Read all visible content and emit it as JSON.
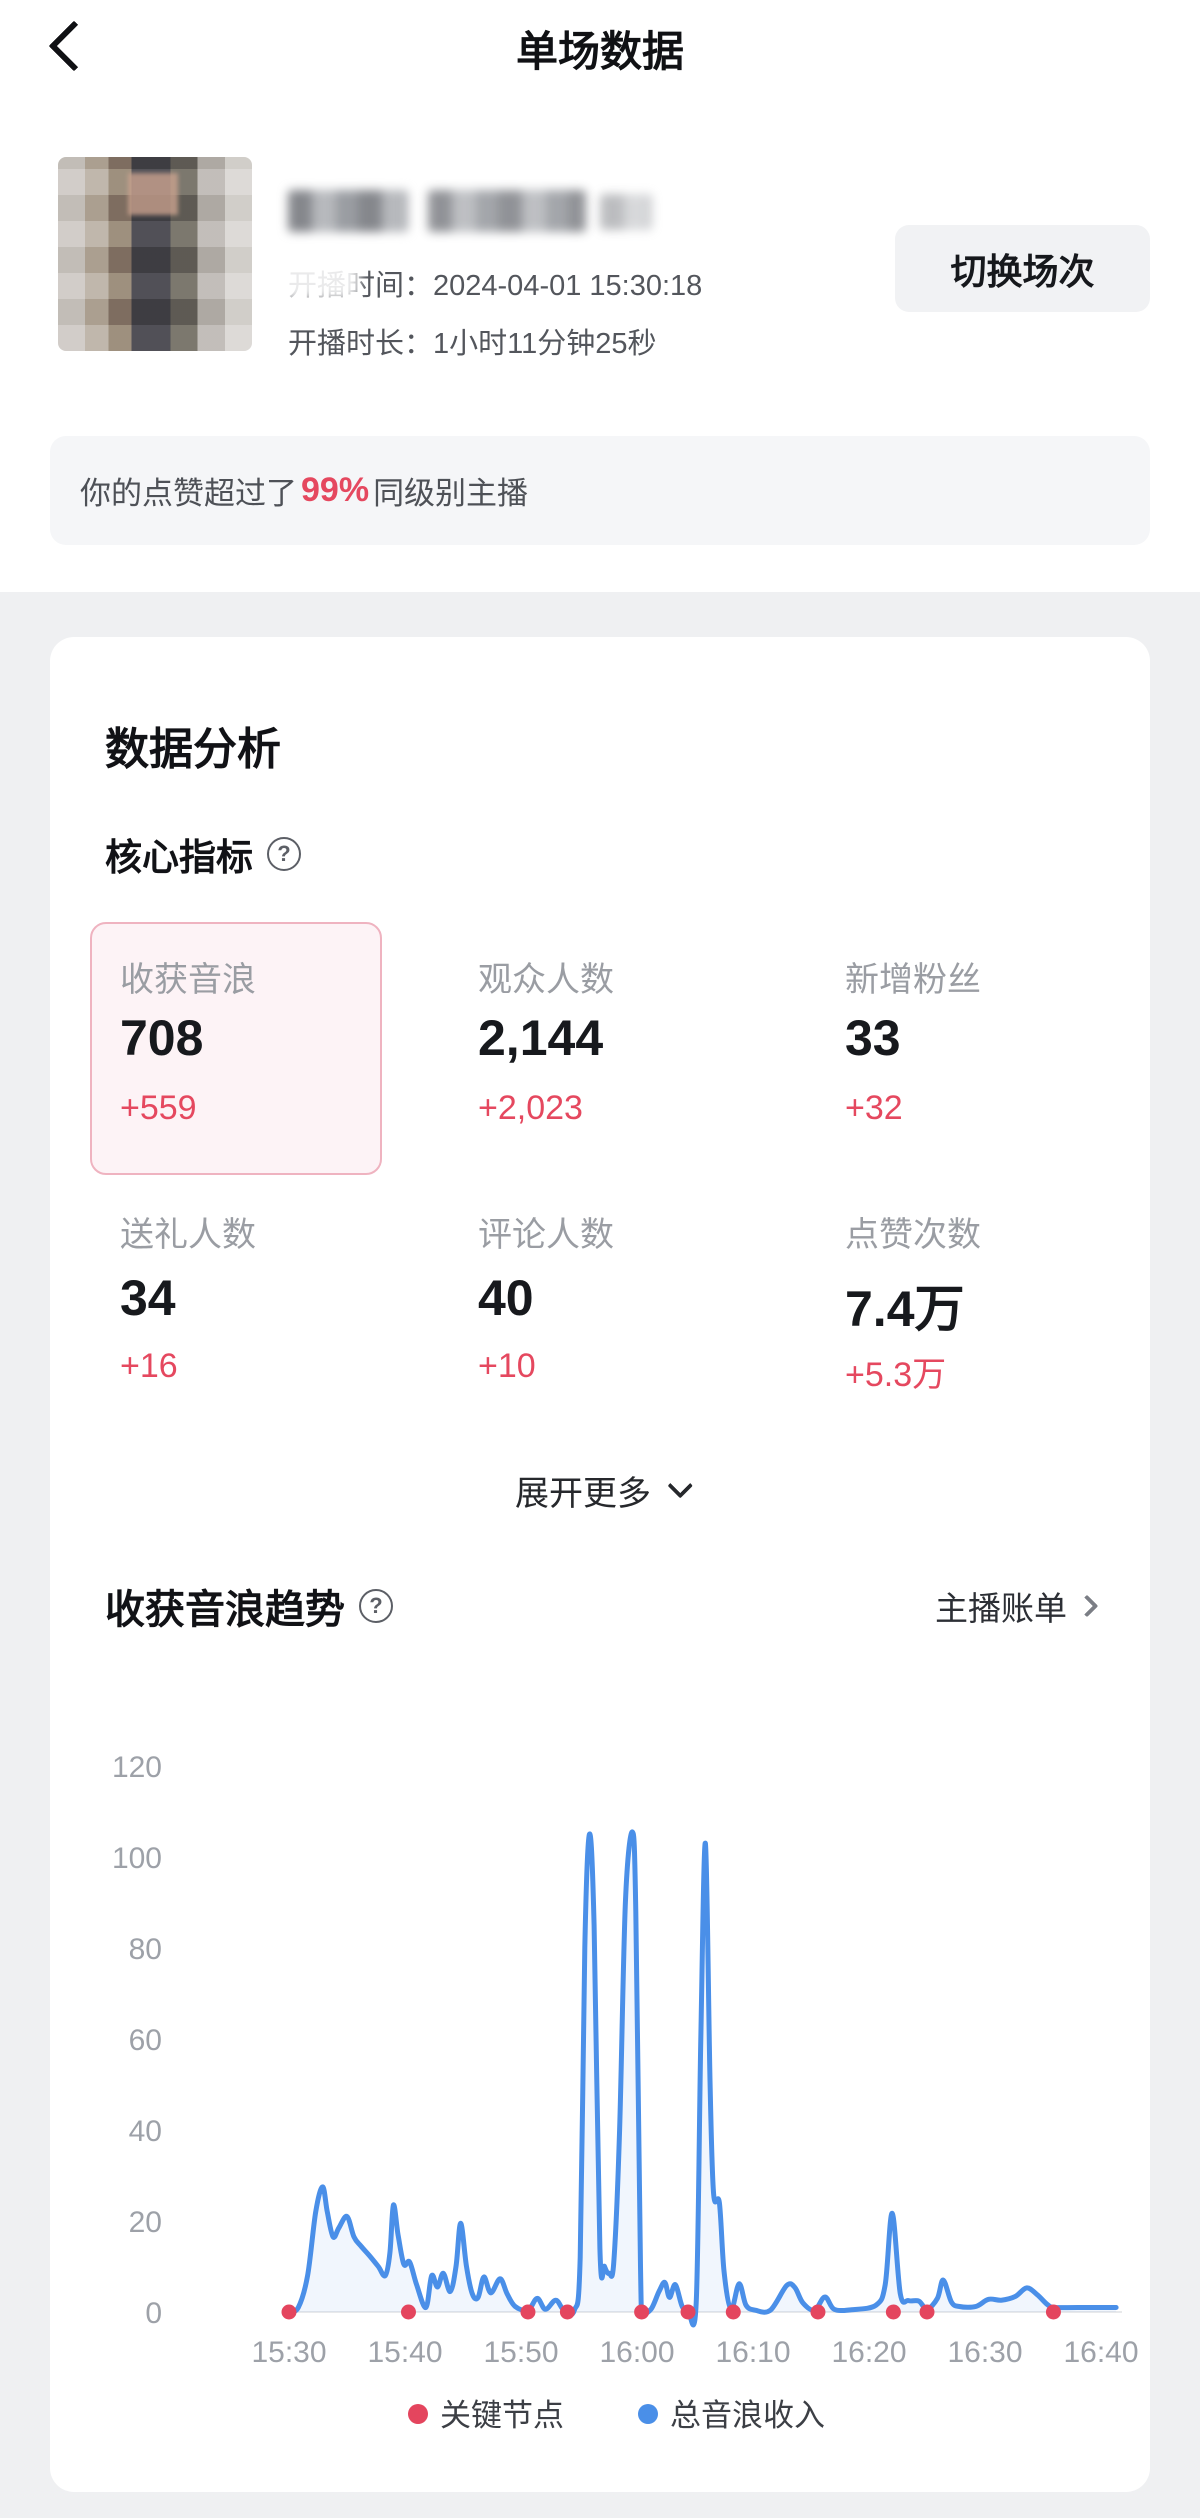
{
  "header": {
    "title": "单场数据"
  },
  "profile": {
    "broadcast_time_label": "开播时间：",
    "broadcast_time": "2024-04-01 15:30:18",
    "duration_label": "开播时长：",
    "duration": "1小时11分钟25秒",
    "switch_button": "切换场次"
  },
  "banner": {
    "prefix": "你的点赞超过了",
    "highlight": "99%",
    "suffix": "同级别主播"
  },
  "analysis": {
    "title": "数据分析",
    "core_metrics_title": "核心指标",
    "help_icon_glyph": "?",
    "metrics": [
      {
        "label": "收获音浪",
        "value": "708",
        "delta": "+559",
        "selected": true
      },
      {
        "label": "观众人数",
        "value": "2,144",
        "delta": "+2,023",
        "selected": false
      },
      {
        "label": "新增粉丝",
        "value": "33",
        "delta": "+32",
        "selected": false
      },
      {
        "label": "送礼人数",
        "value": "34",
        "delta": "+16",
        "selected": false
      },
      {
        "label": "评论人数",
        "value": "40",
        "delta": "+10",
        "selected": false
      },
      {
        "label": "点赞次数",
        "value": "7.4万",
        "delta": "+5.3万",
        "selected": false
      }
    ],
    "expand_more": "展开更多",
    "trend_title": "收获音浪趋势",
    "billing_link": "主播账单"
  },
  "chart_data": {
    "type": "line",
    "title": "收获音浪趋势",
    "xlabel": "",
    "ylabel": "",
    "x_unit": "minutes since 15:30",
    "x_ticks": [
      "15:30",
      "15:40",
      "15:50",
      "16:00",
      "16:10",
      "16:20",
      "16:30",
      "16:40"
    ],
    "x_tick_minutes": [
      0,
      10,
      20,
      30,
      40,
      50,
      60,
      70
    ],
    "y_ticks": [
      0,
      20,
      40,
      60,
      80,
      100,
      120
    ],
    "ylim": [
      0,
      130
    ],
    "xlim": [
      -4.5,
      71.7
    ],
    "grid": false,
    "legend_position": "bottom",
    "series": [
      {
        "name": "总音浪收入",
        "color": "#4a8fe8",
        "points": [
          [
            0,
            0
          ],
          [
            0.8,
            1
          ],
          [
            1.6,
            8
          ],
          [
            2.3,
            22
          ],
          [
            2.9,
            27.5
          ],
          [
            3.3,
            22
          ],
          [
            3.8,
            16.5
          ],
          [
            4.3,
            18.5
          ],
          [
            5.0,
            21
          ],
          [
            5.6,
            16.5
          ],
          [
            6.2,
            14.5
          ],
          [
            6.9,
            12.5
          ],
          [
            7.7,
            10
          ],
          [
            8.3,
            8
          ],
          [
            8.7,
            13
          ],
          [
            9.0,
            23.5
          ],
          [
            9.4,
            17
          ],
          [
            9.9,
            10.5
          ],
          [
            10.4,
            11
          ],
          [
            11.0,
            6
          ],
          [
            11.8,
            1
          ],
          [
            12.3,
            8
          ],
          [
            12.8,
            5.5
          ],
          [
            13.3,
            8.5
          ],
          [
            13.9,
            4.5
          ],
          [
            14.4,
            10
          ],
          [
            14.8,
            19.5
          ],
          [
            15.3,
            10
          ],
          [
            15.8,
            4
          ],
          [
            16.3,
            3.2
          ],
          [
            16.8,
            7.7
          ],
          [
            17.4,
            4.2
          ],
          [
            18.2,
            7.3
          ],
          [
            18.8,
            4
          ],
          [
            19.5,
            1.2
          ],
          [
            20.6,
            0.4
          ],
          [
            21.4,
            3
          ],
          [
            22.1,
            0.6
          ],
          [
            23.0,
            2.6
          ],
          [
            23.7,
            0.4
          ],
          [
            24.6,
            0.4
          ],
          [
            25.1,
            12
          ],
          [
            25.5,
            80
          ],
          [
            25.9,
            105
          ],
          [
            26.3,
            85
          ],
          [
            26.8,
            14
          ],
          [
            27.2,
            10
          ],
          [
            27.6,
            8.5
          ],
          [
            28.0,
            11
          ],
          [
            28.5,
            40
          ],
          [
            29.0,
            90
          ],
          [
            29.6,
            105.5
          ],
          [
            29.9,
            88
          ],
          [
            30.3,
            10
          ],
          [
            30.5,
            0.6
          ],
          [
            31.2,
            0.6
          ],
          [
            31.9,
            4.5
          ],
          [
            32.4,
            6.5
          ],
          [
            32.8,
            3.2
          ],
          [
            33.3,
            6
          ],
          [
            33.9,
            1.2
          ],
          [
            34.4,
            0.4
          ],
          [
            35.1,
            2
          ],
          [
            35.5,
            60
          ],
          [
            35.9,
            103
          ],
          [
            36.3,
            50
          ],
          [
            36.6,
            26
          ],
          [
            37.1,
            24
          ],
          [
            37.5,
            9
          ],
          [
            38.1,
            0.6
          ],
          [
            38.8,
            6.2
          ],
          [
            39.4,
            1.5
          ],
          [
            40.2,
            0.4
          ],
          [
            41.5,
            0.4
          ],
          [
            42.9,
            5.8
          ],
          [
            43.6,
            5.4
          ],
          [
            44.3,
            2
          ],
          [
            45.3,
            0.4
          ],
          [
            46.2,
            3.3
          ],
          [
            47.0,
            0.6
          ],
          [
            48.5,
            0.5
          ],
          [
            50.6,
            1.5
          ],
          [
            51.4,
            6
          ],
          [
            52.0,
            21.7
          ],
          [
            52.7,
            4
          ],
          [
            53.4,
            2.5
          ],
          [
            54.3,
            2.4
          ],
          [
            55.0,
            0.6
          ],
          [
            55.9,
            3
          ],
          [
            56.4,
            7
          ],
          [
            57.1,
            2.2
          ],
          [
            57.8,
            1.2
          ],
          [
            59.2,
            1.2
          ],
          [
            60.3,
            2.8
          ],
          [
            61.4,
            2.6
          ],
          [
            62.6,
            3.4
          ],
          [
            63.6,
            5.3
          ],
          [
            64.5,
            3.8
          ],
          [
            65.4,
            1.6
          ],
          [
            66.0,
            1
          ],
          [
            68.0,
            1
          ],
          [
            71.3,
            1
          ]
        ]
      }
    ],
    "key_points": {
      "name": "关键节点",
      "color": "#e4455e",
      "times_minutes": [
        0,
        10.3,
        20.6,
        24.0,
        30.4,
        34.4,
        38.3,
        45.6,
        52.1,
        55.0,
        65.9
      ]
    },
    "legend": [
      {
        "label": "关键节点",
        "color": "#e4455e"
      },
      {
        "label": "总音浪收入",
        "color": "#4a8fe8"
      }
    ]
  },
  "colors": {
    "accent_red": "#e5485f",
    "line_blue": "#4a8fe8",
    "area_blue": "rgba(77,143,232,0.08)",
    "label_gray": "#9a9da3",
    "value_dark": "#17191d",
    "page_bg": "#eff0f2",
    "card_bg": "#ffffff",
    "selected_card_border": "#efb3c0",
    "selected_card_bg": "#fdf3f6",
    "button_bg": "#f1f2f4",
    "banner_bg": "#f5f6f8",
    "baseline_gray": "#e8e9eb"
  }
}
